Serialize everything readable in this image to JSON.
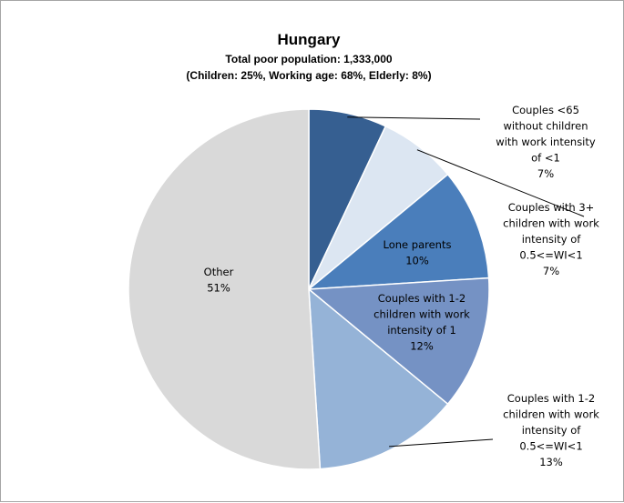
{
  "chart_data": {
    "type": "pie",
    "title": "Hungary",
    "subtitle_lines": [
      "Total poor population: 1,333,000",
      "(Children: 25%, Working age: 68%, Elderly: 8%)"
    ],
    "slices": [
      {
        "label_lines": [
          "Couples <65",
          "without children",
          "with work intensity",
          "of <1"
        ],
        "value": 7,
        "value_label": "7%",
        "color": "#365f91"
      },
      {
        "label_lines": [
          "Couples with 3+",
          "children with work",
          "intensity of",
          "0.5<=WI<1"
        ],
        "value": 7,
        "value_label": "7%",
        "color": "#dce6f2"
      },
      {
        "label_lines": [
          "Lone parents"
        ],
        "value": 10,
        "value_label": "10%",
        "color": "#4a7ebb"
      },
      {
        "label_lines": [
          "Couples with 1-2",
          "children with work",
          "intensity of 1"
        ],
        "value": 12,
        "value_label": "12%",
        "color": "#7592c4"
      },
      {
        "label_lines": [
          "Couples with 1-2",
          "children with work",
          "intensity of",
          "0.5<=WI<1"
        ],
        "value": 13,
        "value_label": "13%",
        "color": "#95b3d7"
      },
      {
        "label_lines": [
          "Other"
        ],
        "value": 51,
        "value_label": "51%",
        "color": "#d9d9d9"
      }
    ]
  }
}
